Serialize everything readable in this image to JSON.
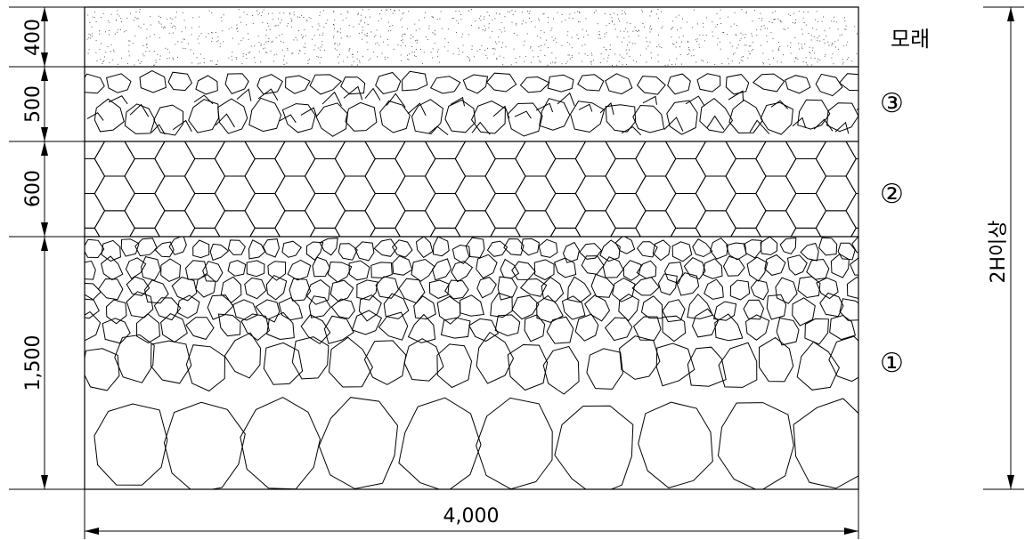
{
  "dimensions": {
    "sand_thickness": "400",
    "layer3_thickness": "500",
    "layer2_thickness": "600",
    "layer1_thickness": "1,500",
    "total_width": "4,000",
    "right_height": "2H이상"
  },
  "layer_labels": {
    "sand": "모래",
    "layer3": "③",
    "layer2": "②",
    "layer1": "①"
  }
}
